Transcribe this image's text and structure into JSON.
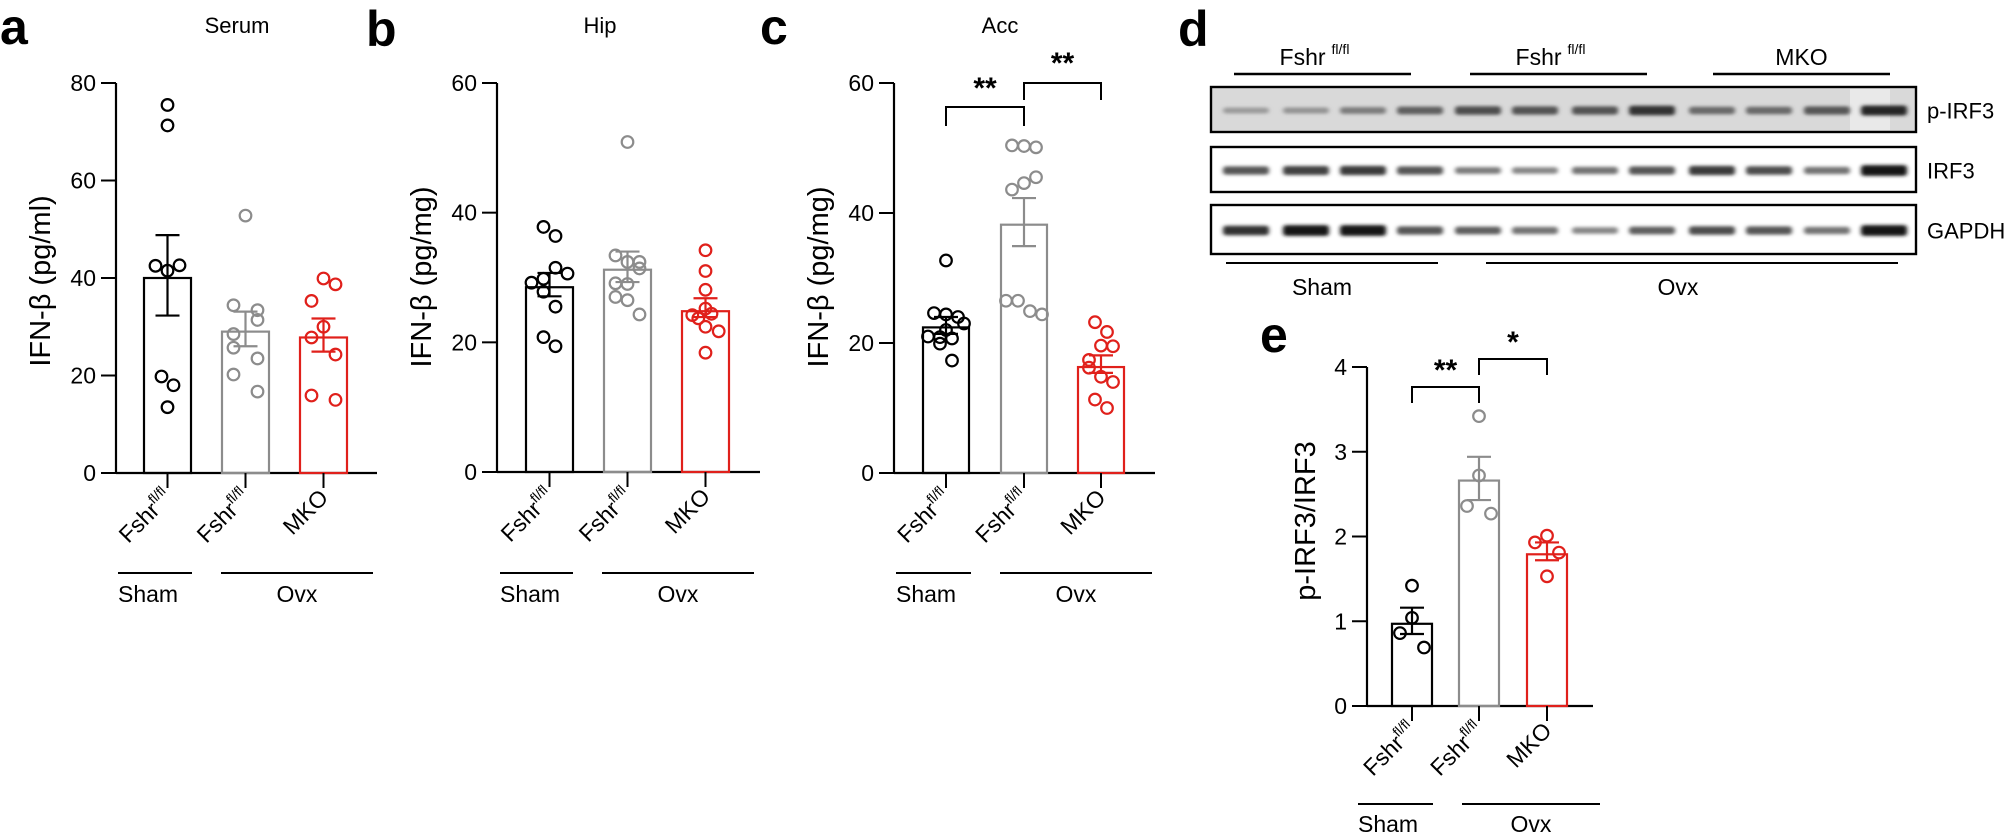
{
  "colors": {
    "sham_wt": "#000000",
    "ovx_wt": "#8c8c8c",
    "ovx_mko": "#e0201b"
  },
  "chart_data": [
    {
      "panel": "a",
      "type": "bar",
      "title": "Serum",
      "ylabel": "IFN-β (pg/ml)",
      "ylim": [
        0,
        80
      ],
      "yticks": [
        "0",
        "20",
        "40",
        "60",
        "80"
      ],
      "ytick_values": [
        0,
        20,
        40,
        60,
        80
      ],
      "categories": [
        {
          "main": "Fshr",
          "sup": "fl/fl"
        },
        {
          "main": "Fshr",
          "sup": "fl/fl"
        },
        {
          "main": "MKO",
          "sup": ""
        }
      ],
      "groups": [
        {
          "label": "Sham",
          "span": [
            0,
            0
          ]
        },
        {
          "label": "Ovx",
          "span": [
            1,
            2
          ]
        }
      ],
      "series": [
        {
          "name": "Sham Fshr fl/fl",
          "color_key": "sham_wt",
          "mean": 40.0,
          "sem": [
            32.3,
            48.8
          ],
          "points": [
            75.5,
            71.3,
            42.5,
            41.5,
            42.6,
            19.8,
            18.0,
            13.5
          ],
          "jitter": [
            0,
            0,
            -1,
            0,
            1,
            -0.5,
            0.5,
            0
          ]
        },
        {
          "name": "Ovx Fshr fl/fl",
          "color_key": "ovx_wt",
          "mean": 29.0,
          "sem": [
            26.0,
            33.1
          ],
          "points": [
            52.8,
            34.4,
            33.4,
            31.4,
            28.5,
            25.7,
            23.5,
            20.2,
            16.7
          ],
          "jitter": [
            0,
            -1,
            1,
            1,
            -1,
            -1,
            1,
            -1,
            1
          ]
        },
        {
          "name": "Ovx MKO",
          "color_key": "ovx_mko",
          "mean": 27.8,
          "sem": [
            24.9,
            31.7
          ],
          "points": [
            39.9,
            38.7,
            35.3,
            30.0,
            27.8,
            24.3,
            15.9,
            15.0
          ],
          "jitter": [
            0,
            1,
            -1,
            0,
            -1,
            1,
            -1,
            1
          ]
        }
      ],
      "significance": []
    },
    {
      "panel": "b",
      "type": "bar",
      "title": "Hip",
      "ylabel": "IFN-β (pg/mg)",
      "ylim": [
        0,
        60
      ],
      "yticks": [
        "0",
        "20",
        "40",
        "60"
      ],
      "ytick_values": [
        0,
        20,
        40,
        60
      ],
      "categories": [
        {
          "main": "Fshr",
          "sup": "fl/fl"
        },
        {
          "main": "Fshr",
          "sup": "fl/fl"
        },
        {
          "main": "MKO",
          "sup": ""
        }
      ],
      "groups": [
        {
          "label": "Sham",
          "span": [
            0,
            0
          ]
        },
        {
          "label": "Ovx",
          "span": [
            1,
            2
          ]
        }
      ],
      "series": [
        {
          "name": "Sham Fshr fl/fl",
          "color_key": "sham_wt",
          "mean": 28.5,
          "sem": [
            27.1,
            30.7
          ],
          "points": [
            37.8,
            36.4,
            31.5,
            30.6,
            29.2,
            29.8,
            27.8,
            25.5,
            20.8,
            19.4
          ],
          "jitter": [
            -0.5,
            0.5,
            0.5,
            1.5,
            -1.5,
            -0.5,
            -0.5,
            0.5,
            -0.5,
            0.5
          ]
        },
        {
          "name": "Ovx Fshr fl/fl",
          "color_key": "ovx_wt",
          "mean": 31.2,
          "sem": [
            29.3,
            34.0
          ],
          "points": [
            50.9,
            33.4,
            32.4,
            32.4,
            31.4,
            29.1,
            29.0,
            27.0,
            26.5,
            24.3
          ],
          "jitter": [
            0,
            -1,
            0,
            1,
            1,
            -1,
            0,
            -1,
            0,
            1
          ]
        },
        {
          "name": "Ovx MKO",
          "color_key": "ovx_mko",
          "mean": 24.8,
          "sem": [
            23.9,
            26.8
          ],
          "points": [
            34.2,
            31.0,
            28.1,
            25.2,
            24.2,
            23.7,
            24.4,
            22.4,
            21.7,
            18.4
          ],
          "jitter": [
            0,
            0,
            0,
            0,
            -1.1,
            -0.6,
            0.5,
            0,
            1.1,
            0
          ]
        }
      ],
      "significance": []
    },
    {
      "panel": "c",
      "type": "bar",
      "title": "Acc",
      "ylabel": "IFN-β (pg/mg)",
      "ylim": [
        0,
        60
      ],
      "yticks": [
        "0",
        "20",
        "40",
        "60"
      ],
      "ytick_values": [
        0,
        20,
        40,
        60
      ],
      "categories": [
        {
          "main": "Fshr",
          "sup": "fl/fl"
        },
        {
          "main": "Fshr",
          "sup": "fl/fl"
        },
        {
          "main": "MKO",
          "sup": ""
        }
      ],
      "groups": [
        {
          "label": "Sham",
          "span": [
            0,
            0
          ]
        },
        {
          "label": "Ovx",
          "span": [
            1,
            2
          ]
        }
      ],
      "series": [
        {
          "name": "Sham Fshr fl/fl",
          "color_key": "sham_wt",
          "mean": 22.4,
          "sem": [
            21.4,
            24.0
          ],
          "points": [
            32.7,
            24.6,
            24.4,
            24.0,
            23.0,
            22.0,
            21.0,
            20.9,
            20.7,
            19.9,
            17.3
          ],
          "jitter": [
            0,
            -1,
            0,
            1,
            1.5,
            0,
            -1.5,
            -0.5,
            0.5,
            -0.5,
            0.5
          ]
        },
        {
          "name": "Ovx Fshr fl/fl",
          "color_key": "ovx_wt",
          "mean": 38.2,
          "sem": [
            34.9,
            42.3
          ],
          "points": [
            50.4,
            50.3,
            50.1,
            43.6,
            44.6,
            45.5,
            26.5,
            26.5,
            24.9,
            24.4
          ],
          "jitter": [
            -1,
            0,
            1,
            -1,
            0,
            1,
            -1.5,
            -0.5,
            0.5,
            1.5
          ]
        },
        {
          "name": "Ovx MKO",
          "color_key": "ovx_mko",
          "mean": 16.3,
          "sem": [
            15.4,
            18.1
          ],
          "points": [
            23.2,
            21.7,
            19.6,
            19.5,
            17.4,
            16.2,
            14.8,
            14.0,
            11.3,
            10.0
          ],
          "jitter": [
            -0.5,
            0.5,
            0,
            1,
            -1,
            -1,
            0,
            1,
            -0.5,
            0.5
          ]
        }
      ],
      "significance": [
        {
          "from": 0,
          "to": 1,
          "label": "**",
          "level": 1
        },
        {
          "from": 1,
          "to": 2,
          "label": "**",
          "level": 2
        }
      ]
    },
    {
      "panel": "e",
      "type": "bar",
      "title": "",
      "ylabel": "p-IRF3/IRF3",
      "ylim": [
        0,
        4
      ],
      "yticks": [
        "0",
        "1",
        "2",
        "3",
        "4"
      ],
      "ytick_values": [
        0,
        1,
        2,
        3,
        4
      ],
      "categories": [
        {
          "main": "Fshr",
          "sup": "fl/fl"
        },
        {
          "main": "Fshr",
          "sup": "fl/fl"
        },
        {
          "main": "MKO",
          "sup": ""
        }
      ],
      "groups": [
        {
          "label": "Sham",
          "span": [
            0,
            0
          ]
        },
        {
          "label": "Ovx",
          "span": [
            1,
            2
          ]
        }
      ],
      "series": [
        {
          "name": "Sham Fshr fl/fl",
          "color_key": "sham_wt",
          "mean": 0.97,
          "sem": [
            0.85,
            1.16
          ],
          "points": [
            1.42,
            1.04,
            0.86,
            0.69
          ],
          "jitter": [
            0,
            0,
            -1,
            1
          ]
        },
        {
          "name": "Ovx Fshr fl/fl",
          "color_key": "ovx_wt",
          "mean": 2.66,
          "sem": [
            2.43,
            2.94
          ],
          "points": [
            3.42,
            2.72,
            2.36,
            2.27
          ],
          "jitter": [
            0,
            0,
            -1,
            1
          ]
        },
        {
          "name": "Ovx MKO",
          "color_key": "ovx_mko",
          "mean": 1.79,
          "sem": [
            1.72,
            1.93
          ],
          "points": [
            2.01,
            1.93,
            1.81,
            1.53
          ],
          "jitter": [
            0,
            -1,
            1,
            0
          ]
        }
      ],
      "significance": [
        {
          "from": 0,
          "to": 1,
          "label": "**",
          "level": 1
        },
        {
          "from": 1,
          "to": 2,
          "label": "*",
          "level": 2
        }
      ]
    }
  ],
  "panels": {
    "a": {
      "letter": "a"
    },
    "b": {
      "letter": "b"
    },
    "c": {
      "letter": "c"
    },
    "d": {
      "letter": "d"
    },
    "e": {
      "letter": "e"
    }
  },
  "blot": {
    "top_groups": [
      {
        "main": "Fshr",
        "sup": "fl/fl"
      },
      {
        "main": "Fshr",
        "sup": "fl/fl"
      },
      {
        "main": "MKO",
        "sup": ""
      }
    ],
    "bottom_groups": [
      {
        "label": "Sham"
      },
      {
        "label": "Ovx"
      }
    ],
    "rows": [
      {
        "label": "p-IRF3",
        "background": "#d9d9d9",
        "intensities": [
          0.25,
          0.28,
          0.4,
          0.55,
          0.65,
          0.62,
          0.62,
          0.8,
          0.5,
          0.5,
          0.6,
          0.85
        ]
      },
      {
        "label": "IRF3",
        "background": "#ffffff",
        "intensities": [
          0.6,
          0.7,
          0.75,
          0.6,
          0.4,
          0.35,
          0.45,
          0.6,
          0.75,
          0.65,
          0.45,
          0.95
        ]
      },
      {
        "label": "GAPDH",
        "background": "#ffffff",
        "intensities": [
          0.8,
          0.95,
          0.95,
          0.6,
          0.55,
          0.45,
          0.35,
          0.55,
          0.65,
          0.6,
          0.45,
          0.95
        ]
      }
    ]
  }
}
